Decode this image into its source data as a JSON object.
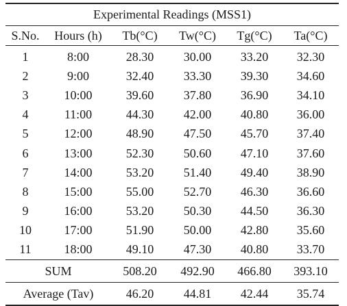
{
  "table": {
    "title": "Experimental Readings (MSS1)",
    "headers": [
      "S.No.",
      "Hours (h)",
      "Tb(°C)",
      "Tw(°C)",
      "Tg(°C)",
      "Ta(°C)"
    ],
    "rows": [
      [
        "1",
        "8:00",
        "28.30",
        "30.00",
        "33.20",
        "32.30"
      ],
      [
        "2",
        "9:00",
        "32.40",
        "33.30",
        "39.30",
        "34.60"
      ],
      [
        "3",
        "10:00",
        "39.60",
        "37.80",
        "36.90",
        "34.10"
      ],
      [
        "4",
        "11:00",
        "44.30",
        "42.00",
        "40.80",
        "36.00"
      ],
      [
        "5",
        "12:00",
        "48.90",
        "47.50",
        "45.70",
        "37.40"
      ],
      [
        "6",
        "13:00",
        "52.30",
        "50.60",
        "47.10",
        "37.60"
      ],
      [
        "7",
        "14:00",
        "53.20",
        "51.40",
        "49.40",
        "38.90"
      ],
      [
        "8",
        "15:00",
        "55.00",
        "52.70",
        "46.30",
        "36.60"
      ],
      [
        "9",
        "16:00",
        "53.20",
        "50.30",
        "44.50",
        "36.30"
      ],
      [
        "10",
        "17:00",
        "51.90",
        "50.00",
        "42.80",
        "35.60"
      ],
      [
        "11",
        "18:00",
        "49.10",
        "47.30",
        "40.80",
        "33.70"
      ]
    ],
    "sum": {
      "label": "SUM",
      "values": [
        "508.20",
        "492.90",
        "466.80",
        "393.10"
      ]
    },
    "average": {
      "label": "Average (Tav)",
      "values": [
        "46.20",
        "44.81",
        "42.44",
        "35.74"
      ]
    }
  }
}
